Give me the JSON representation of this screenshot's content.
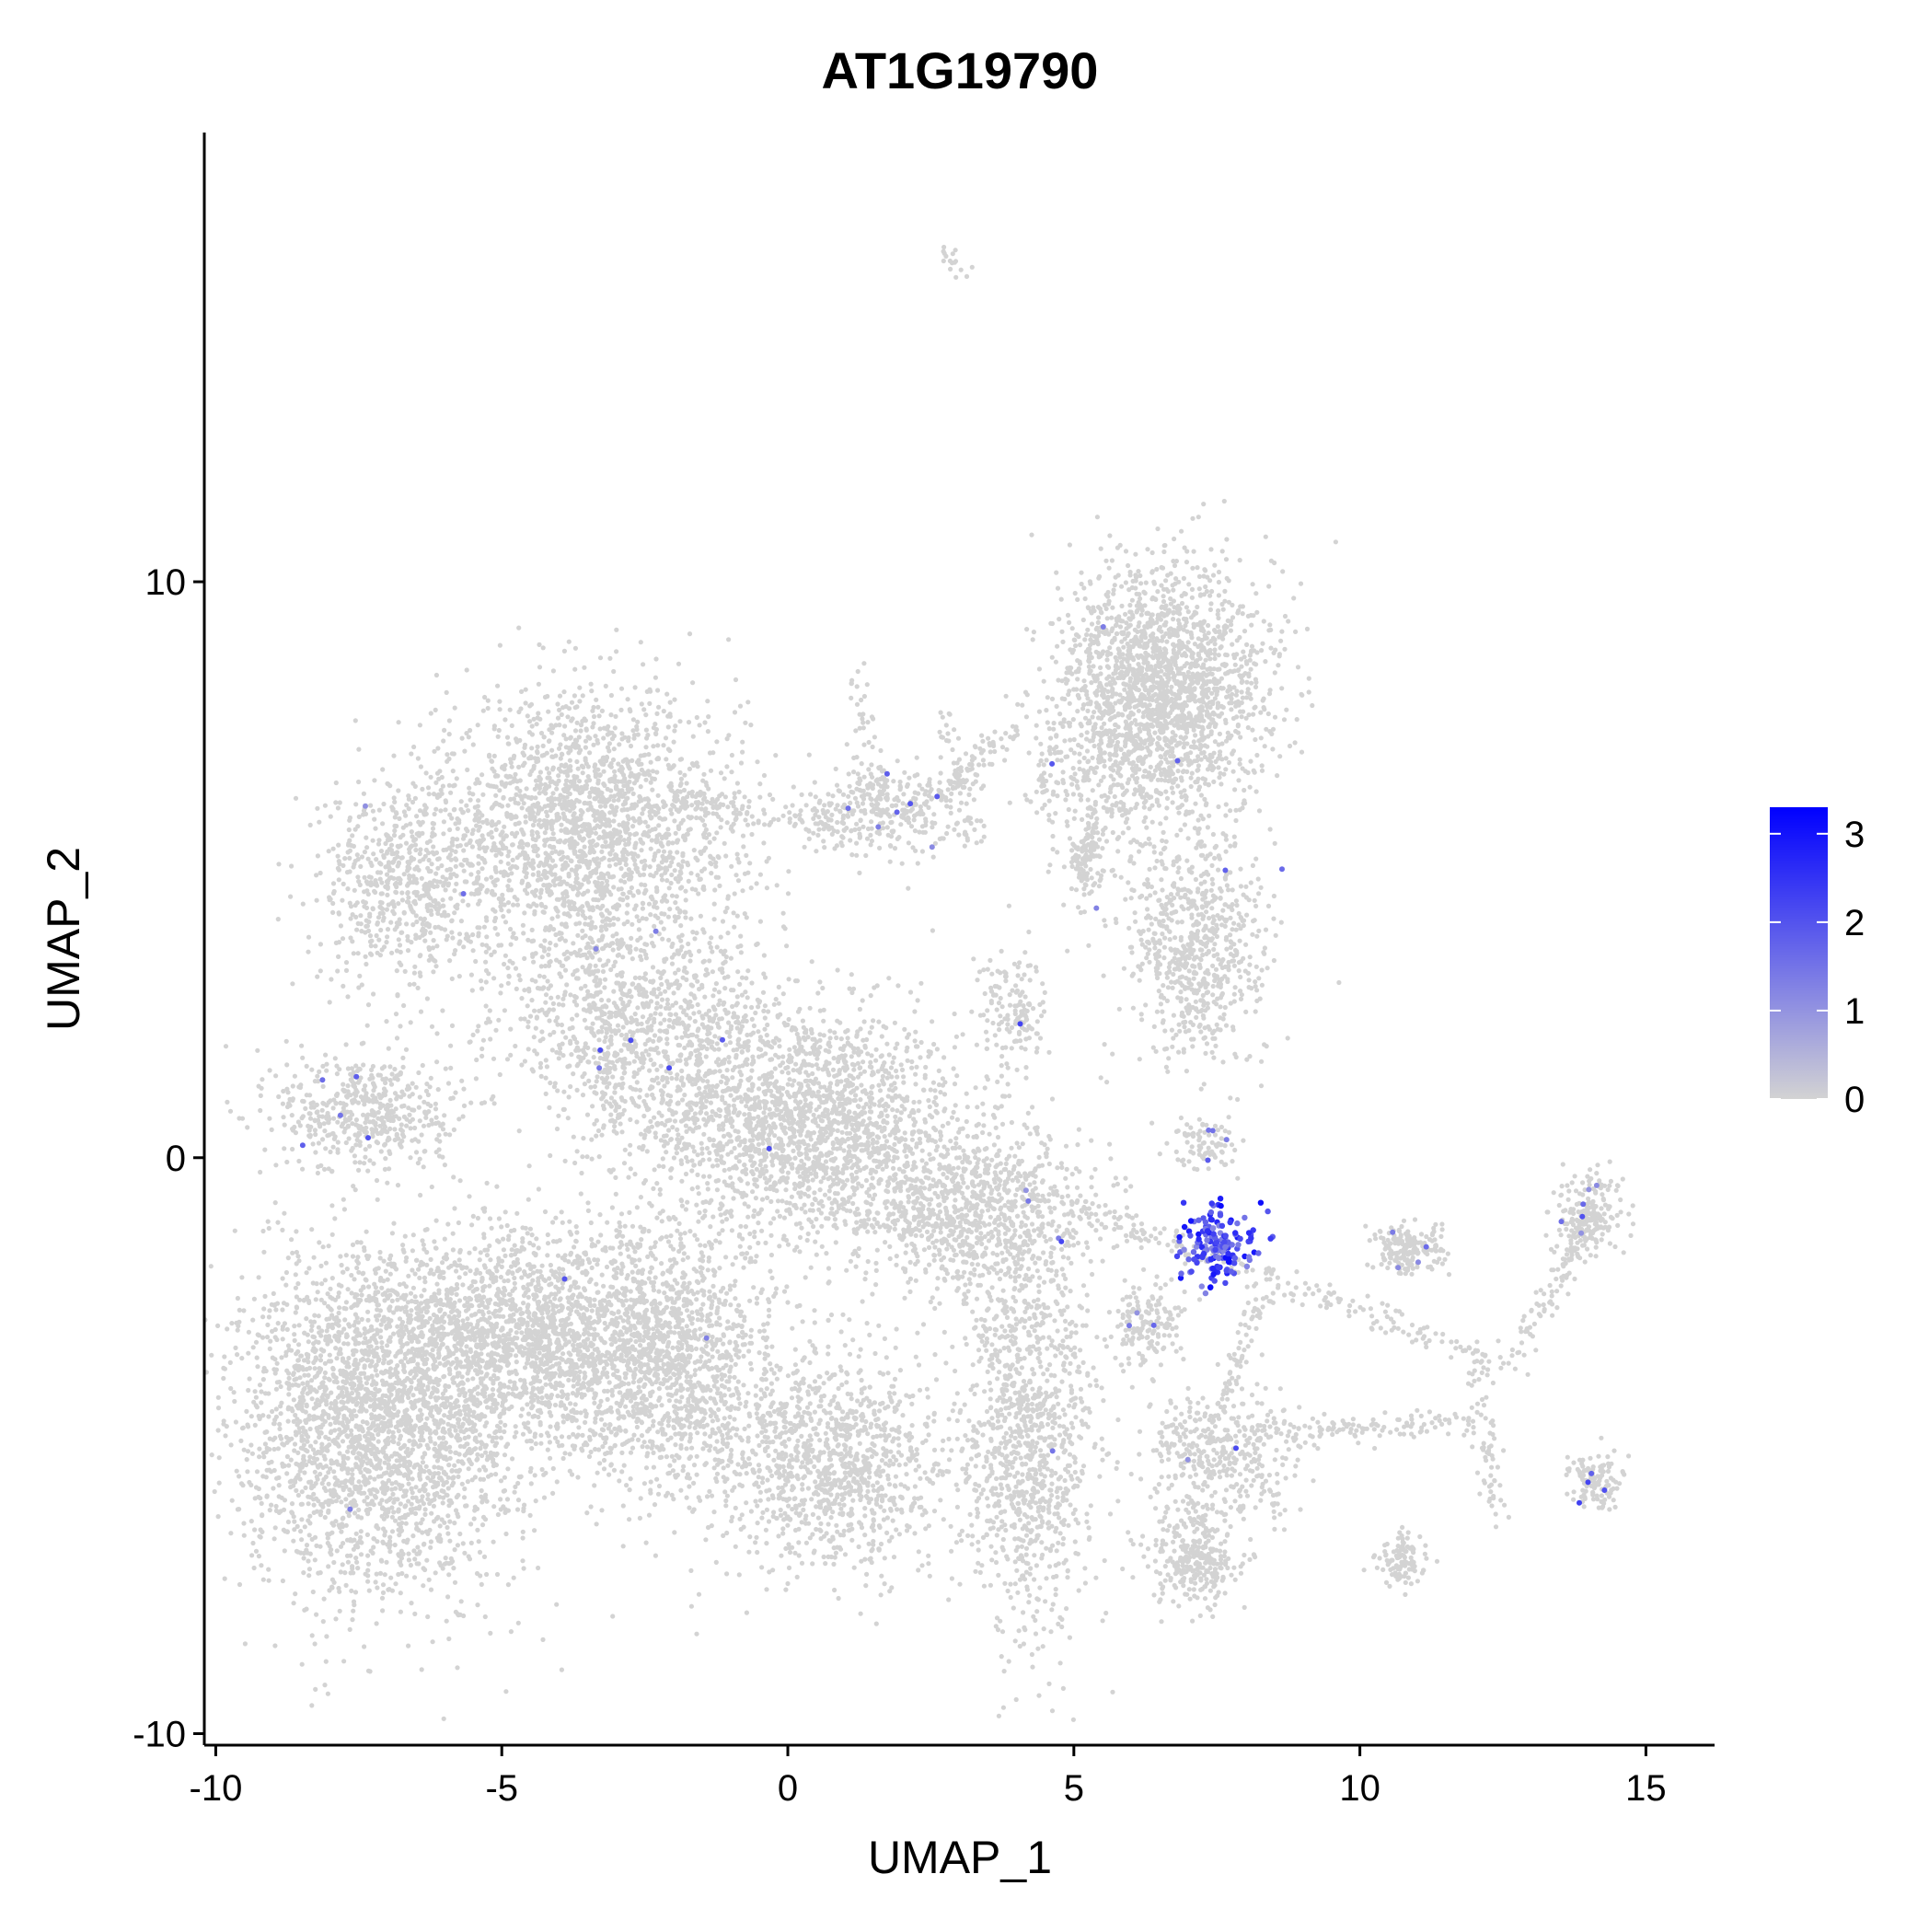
{
  "chart_data": {
    "type": "scatter",
    "title": "AT1G19790",
    "xlabel": "UMAP_1",
    "ylabel": "UMAP_2",
    "xlim": [
      -10.2,
      16.2
    ],
    "ylim": [
      -10.2,
      17.8
    ],
    "x_ticks": [
      -10,
      -5,
      0,
      5,
      10,
      15
    ],
    "x_tick_labels": [
      "-10",
      "-5",
      "0",
      "5",
      "10",
      "15"
    ],
    "y_ticks": [
      -10,
      0,
      10
    ],
    "y_tick_labels": [
      "-10",
      "0",
      "10"
    ],
    "grid": false,
    "legend_position": "right",
    "color_scale": {
      "low_color": "#d3d3d3",
      "high_color": "#0000ff",
      "min": 0,
      "max": 3.3,
      "ticks": [
        0,
        1,
        2,
        3
      ],
      "tick_labels": [
        "0",
        "1",
        "2",
        "3"
      ]
    },
    "point_color_base": "#d3d3d3",
    "clusters": [
      {
        "cx": 0.3,
        "cy": 0.6,
        "sx": 1.8,
        "sy": 1.3,
        "n": 1900
      },
      {
        "cx": -3.5,
        "cy": 5.6,
        "sx": 1.8,
        "sy": 1.6,
        "n": 2200
      },
      {
        "cx": -6.7,
        "cy": 4.8,
        "sx": 1.0,
        "sy": 1.2,
        "n": 600
      },
      {
        "cx": -7.4,
        "cy": 0.8,
        "sx": 1.0,
        "sy": 0.7,
        "n": 500
      },
      {
        "cx": -7.2,
        "cy": -4.6,
        "sx": 1.6,
        "sy": 2.0,
        "n": 2600
      },
      {
        "cx": -4.5,
        "cy": -3.2,
        "sx": 1.8,
        "sy": 1.3,
        "n": 1900
      },
      {
        "cx": -2.0,
        "cy": -3.5,
        "sx": 1.3,
        "sy": 1.6,
        "n": 1300
      },
      {
        "cx": 0.8,
        "cy": -5.3,
        "sx": 1.3,
        "sy": 1.2,
        "n": 1100
      },
      {
        "cx": 3.2,
        "cy": -1.0,
        "sx": 1.5,
        "sy": 1.0,
        "n": 1000
      },
      {
        "cx": 4.2,
        "cy": -4.8,
        "sx": 0.8,
        "sy": 2.2,
        "n": 1100
      },
      {
        "cx": 6.8,
        "cy": 8.2,
        "sx": 1.1,
        "sy": 1.4,
        "n": 1500
      },
      {
        "cx": 5.7,
        "cy": 7.6,
        "sx": 0.9,
        "sy": 1.6,
        "n": 700
      },
      {
        "cx": 7.1,
        "cy": 3.7,
        "sx": 0.8,
        "sy": 1.4,
        "n": 700
      },
      {
        "cx": 7.1,
        "cy": -7.0,
        "sx": 0.5,
        "sy": 0.6,
        "n": 300
      },
      {
        "cx": 7.6,
        "cy": -5.2,
        "sx": 0.9,
        "sy": 0.8,
        "n": 400
      },
      {
        "cx": 1.6,
        "cy": 6.0,
        "sx": 0.9,
        "sy": 0.5,
        "n": 300
      },
      {
        "cx": 5.2,
        "cy": 5.2,
        "sx": 0.2,
        "sy": 0.5,
        "n": 120
      },
      {
        "cx": 3.9,
        "cy": 2.5,
        "sx": 0.4,
        "sy": 0.8,
        "n": 150
      },
      {
        "cx": 6.3,
        "cy": -3.0,
        "sx": 0.4,
        "sy": 0.5,
        "n": 150
      },
      {
        "cx": 10.8,
        "cy": -1.6,
        "sx": 0.4,
        "sy": 0.3,
        "n": 180
      },
      {
        "cx": 14.0,
        "cy": -1.0,
        "sx": 0.4,
        "sy": 0.5,
        "n": 200
      },
      {
        "cx": 14.1,
        "cy": -5.6,
        "sx": 0.3,
        "sy": 0.3,
        "n": 120
      },
      {
        "cx": 10.8,
        "cy": -7.0,
        "sx": 0.3,
        "sy": 0.3,
        "n": 100
      },
      {
        "cx": -2.5,
        "cy": 2.2,
        "sx": 1.6,
        "sy": 1.2,
        "n": 900
      },
      {
        "cx": 7.3,
        "cy": 0.2,
        "sx": 0.4,
        "sy": 0.3,
        "n": 80
      },
      {
        "cx": 7.5,
        "cy": -1.5,
        "sx": 0.45,
        "sy": 0.45,
        "n": 160,
        "expr": true
      }
    ],
    "paths": [
      {
        "from": [
          6.0,
          -1.2
        ],
        "to": [
          12.6,
          -3.6
        ],
        "n": 160
      },
      {
        "from": [
          12.6,
          -3.6
        ],
        "to": [
          14.0,
          -1.2
        ],
        "n": 90
      },
      {
        "from": [
          8.0,
          -4.8
        ],
        "to": [
          12.0,
          -4.6
        ],
        "n": 120
      },
      {
        "from": [
          12.0,
          -3.4
        ],
        "to": [
          12.4,
          -6.4
        ],
        "n": 70
      },
      {
        "from": [
          8.4,
          -2.3
        ],
        "to": [
          7.6,
          -4.2
        ],
        "n": 60
      },
      {
        "from": [
          -2.0,
          6.2
        ],
        "to": [
          1.2,
          5.6
        ],
        "n": 100
      },
      {
        "from": [
          2.3,
          6.0
        ],
        "to": [
          4.0,
          7.5
        ],
        "n": 90
      },
      {
        "from": [
          1.2,
          8.4
        ],
        "to": [
          1.6,
          6.4
        ],
        "n": 40
      },
      {
        "from": [
          4.7,
          -0.8
        ],
        "to": [
          6.4,
          -1.4
        ],
        "n": 50
      },
      {
        "from": [
          -3.5,
          4.0
        ],
        "to": [
          -3.0,
          0.5
        ],
        "n": 80
      },
      {
        "from": [
          2.8,
          15.7
        ],
        "to": [
          3.0,
          15.4
        ],
        "n": 16
      },
      {
        "from": [
          2.7,
          7.8
        ],
        "to": [
          3.3,
          5.5
        ],
        "n": 50
      },
      {
        "from": [
          4.3,
          6.0
        ],
        "to": [
          4.6,
          7.2
        ],
        "n": 30
      }
    ]
  }
}
